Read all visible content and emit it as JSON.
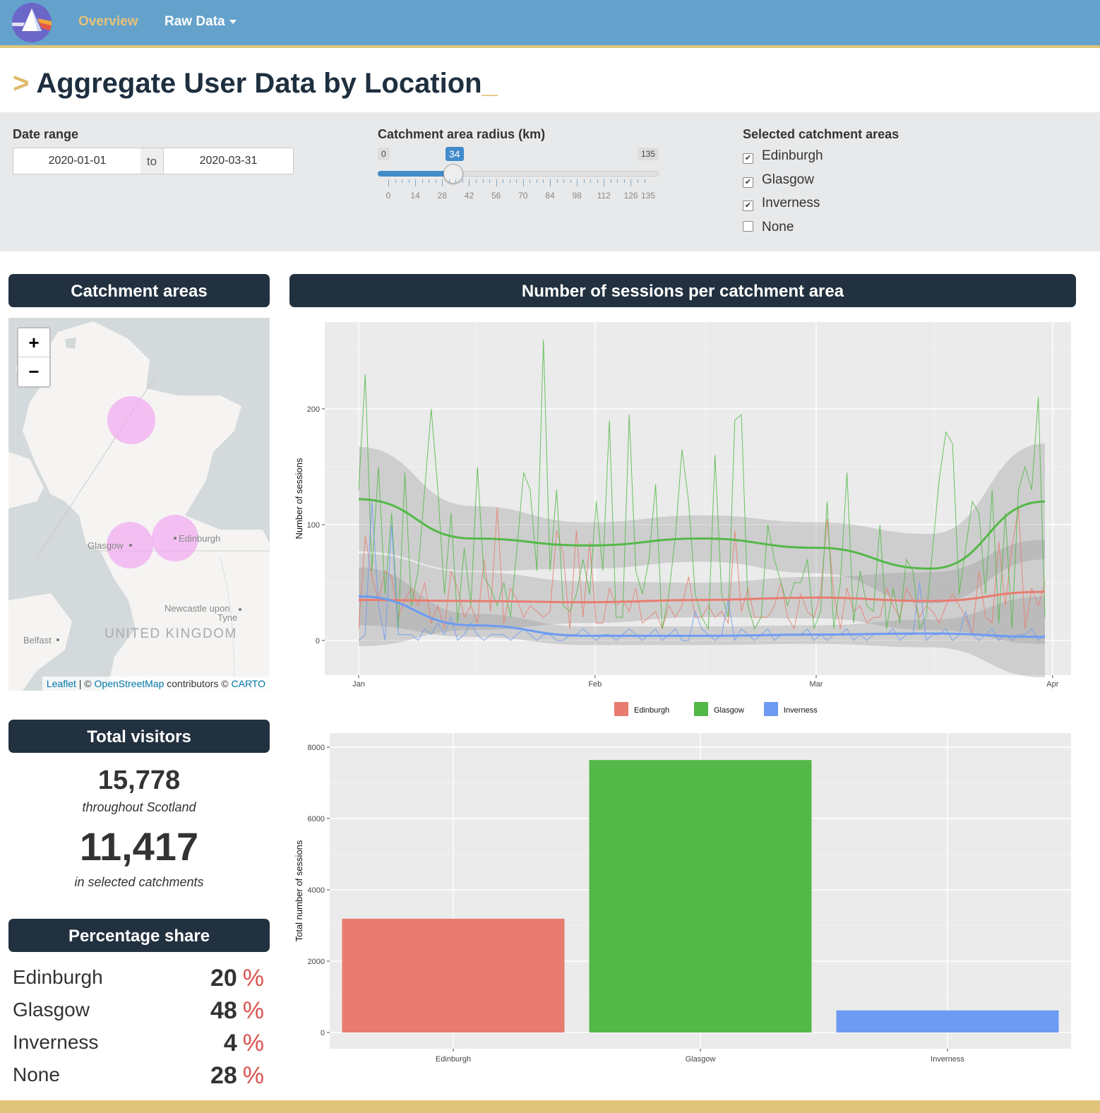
{
  "nav": {
    "overview": "Overview",
    "raw_data": "Raw Data"
  },
  "title": {
    "prefix": ">",
    "text": "Aggregate User Data by Location",
    "suffix": "_"
  },
  "controls": {
    "date_label": "Date range",
    "date_from": "2020-01-01",
    "date_sep": "to",
    "date_to": "2020-03-31",
    "radius_label": "Catchment area radius (km)",
    "radius_min": "0",
    "radius_value": "34",
    "radius_max": "135",
    "radius_ticks": [
      "0",
      "14",
      "28",
      "42",
      "56",
      "70",
      "84",
      "98",
      "112",
      "126",
      "135"
    ],
    "areas_label": "Selected catchment areas",
    "areas": [
      {
        "label": "Edinburgh",
        "checked": true
      },
      {
        "label": "Glasgow",
        "checked": true
      },
      {
        "label": "Inverness",
        "checked": true
      },
      {
        "label": "None",
        "checked": false
      }
    ]
  },
  "map_panel": {
    "header": "Catchment areas",
    "zoom_in": "+",
    "zoom_out": "−",
    "labels": {
      "glasgow": "Glasgow",
      "edinburgh": "Edinburgh",
      "newcastle": "Newcastle upon",
      "newcastle2": "Tyne",
      "belfast": "Belfast",
      "uk": "UNITED KINGDOM"
    },
    "attribution": {
      "leaflet": "Leaflet",
      "sep1": " | © ",
      "osm": "OpenStreetMap",
      "mid": " contributors © ",
      "carto": "CARTO"
    }
  },
  "visitors": {
    "header": "Total visitors",
    "total": "15,778",
    "total_caption": "throughout Scotland",
    "selected": "11,417",
    "selected_caption": "in selected catchments"
  },
  "share": {
    "header": "Percentage share",
    "pct_symbol": "%",
    "rows": [
      {
        "name": "Edinburgh",
        "value": "20"
      },
      {
        "name": "Glasgow",
        "value": "48"
      },
      {
        "name": "Inverness",
        "value": "4"
      },
      {
        "name": "None",
        "value": "28"
      }
    ]
  },
  "sessions_panel": {
    "header": "Number of sessions per catchment area"
  },
  "colors": {
    "edinburgh": "#e87c70",
    "glasgow": "#54b848",
    "inverness": "#6d9bf3"
  },
  "chart_data": [
    {
      "type": "line",
      "ylabel": "Number of sessions",
      "xlabel": "",
      "x_ticks": [
        "Jan",
        "Feb",
        "Mar",
        "Apr"
      ],
      "y_ticks": [
        "0",
        "100",
        "200"
      ],
      "ylim": [
        -30,
        275
      ],
      "x_start": "2020-01-01",
      "grid": true,
      "legend": "bottom",
      "series": [
        {
          "name": "Edinburgh",
          "color": "#e87c70",
          "values": [
            10,
            90,
            55,
            35,
            60,
            55,
            20,
            35,
            45,
            30,
            50,
            15,
            30,
            10,
            60,
            45,
            20,
            30,
            15,
            70,
            25,
            115,
            15,
            45,
            35,
            20,
            30,
            25,
            20,
            25,
            95,
            75,
            10,
            95,
            20,
            85,
            15,
            15,
            45,
            30,
            35,
            25,
            45,
            15,
            20,
            25,
            10,
            30,
            20,
            30,
            55,
            20,
            20,
            30,
            20,
            25,
            15,
            95,
            25,
            45,
            20,
            20,
            20,
            30,
            50,
            20,
            10,
            40,
            25,
            20,
            40,
            105,
            40,
            10,
            45,
            25,
            30,
            15,
            20,
            20,
            45,
            30,
            20,
            45,
            35,
            20,
            30,
            25,
            15,
            30,
            40,
            30,
            20,
            5,
            60,
            20,
            15,
            85,
            30,
            80,
            115,
            10,
            45,
            30,
            50
          ]
        },
        {
          "name": "Glasgow",
          "color": "#54b848",
          "values": [
            130,
            230,
            60,
            150,
            40,
            110,
            10,
            145,
            30,
            60,
            130,
            200,
            130,
            40,
            110,
            15,
            80,
            30,
            150,
            55,
            45,
            30,
            50,
            20,
            80,
            145,
            130,
            60,
            260,
            60,
            130,
            30,
            25,
            40,
            70,
            40,
            120,
            60,
            190,
            20,
            20,
            195,
            60,
            40,
            70,
            135,
            10,
            40,
            90,
            165,
            120,
            40,
            20,
            10,
            160,
            40,
            20,
            190,
            195,
            30,
            10,
            20,
            100,
            70,
            50,
            30,
            50,
            50,
            70,
            10,
            25,
            120,
            10,
            50,
            145,
            15,
            60,
            30,
            25,
            100,
            10,
            45,
            15,
            70,
            60,
            10,
            20,
            80,
            140,
            180,
            170,
            40,
            80,
            120,
            110,
            40,
            130,
            15,
            110,
            10,
            130,
            150,
            130,
            210,
            20
          ]
        },
        {
          "name": "Inverness",
          "color": "#6d9bf3",
          "values": [
            0,
            5,
            120,
            30,
            0,
            100,
            5,
            5,
            5,
            0,
            10,
            5,
            15,
            5,
            20,
            0,
            5,
            15,
            5,
            0,
            5,
            5,
            5,
            0,
            5,
            10,
            5,
            0,
            5,
            5,
            0,
            0,
            5,
            5,
            10,
            5,
            0,
            5,
            5,
            0,
            5,
            10,
            5,
            0,
            5,
            10,
            0,
            5,
            10,
            0,
            0,
            25,
            10,
            5,
            0,
            5,
            35,
            0,
            10,
            5,
            0,
            5,
            10,
            0,
            5,
            5,
            5,
            5,
            10,
            0,
            5,
            0,
            5,
            5,
            10,
            0,
            5,
            0,
            5,
            5,
            5,
            10,
            0,
            5,
            5,
            50,
            0,
            5,
            5,
            10,
            0,
            5,
            25,
            5,
            0,
            5,
            10,
            0,
            5,
            0,
            5,
            5,
            10,
            0,
            5
          ]
        }
      ],
      "smooth": [
        {
          "name": "Edinburgh",
          "x": [
            0,
            15,
            30,
            45,
            60,
            75,
            90
          ],
          "y": [
            35,
            34,
            33,
            35,
            37,
            34,
            42
          ]
        },
        {
          "name": "Glasgow",
          "x": [
            0,
            15,
            30,
            45,
            60,
            75,
            90
          ],
          "y": [
            122,
            88,
            82,
            88,
            80,
            62,
            120
          ]
        },
        {
          "name": "Inverness",
          "x": [
            0,
            15,
            30,
            45,
            60,
            75,
            90
          ],
          "y": [
            38,
            13,
            4,
            4,
            5,
            6,
            3
          ]
        }
      ]
    },
    {
      "type": "bar",
      "categories": [
        "Edinburgh",
        "Glasgow",
        "Inverness"
      ],
      "values": [
        3190,
        7640,
        620
      ],
      "colors": [
        "#e87c70",
        "#54b848",
        "#6d9bf3"
      ],
      "ylabel": "Total number of sessions",
      "y_ticks": [
        "0",
        "2000",
        "4000",
        "6000",
        "8000"
      ],
      "ylim": [
        0,
        8000
      ]
    }
  ]
}
